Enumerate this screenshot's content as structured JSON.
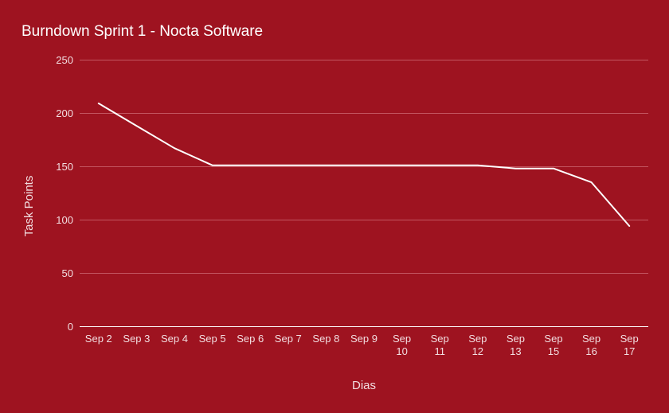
{
  "chart_data": {
    "type": "line",
    "title": "Burndown Sprint 1 - Nocta Software",
    "xlabel": "Dias",
    "ylabel": "Task Points",
    "categories": [
      "Sep 2",
      "Sep 3",
      "Sep 4",
      "Sep 5",
      "Sep 6",
      "Sep 7",
      "Sep 8",
      "Sep 9",
      "Sep 10",
      "Sep 11",
      "Sep 12",
      "Sep 13",
      "Sep 15",
      "Sep 16",
      "Sep 17"
    ],
    "series": [
      {
        "values": [
          209,
          188,
          167,
          151,
          151,
          151,
          151,
          151,
          151,
          151,
          151,
          148,
          148,
          135,
          94
        ]
      }
    ],
    "ylim": [
      0,
      250
    ],
    "yticks": [
      0,
      50,
      100,
      150,
      200,
      250
    ],
    "grid": true,
    "legend": "none",
    "colors": {
      "background": "#9e1320",
      "line": "#ffffff",
      "grid": "#c25560",
      "baseline": "#ffffff",
      "text": "#f2dde0"
    }
  }
}
